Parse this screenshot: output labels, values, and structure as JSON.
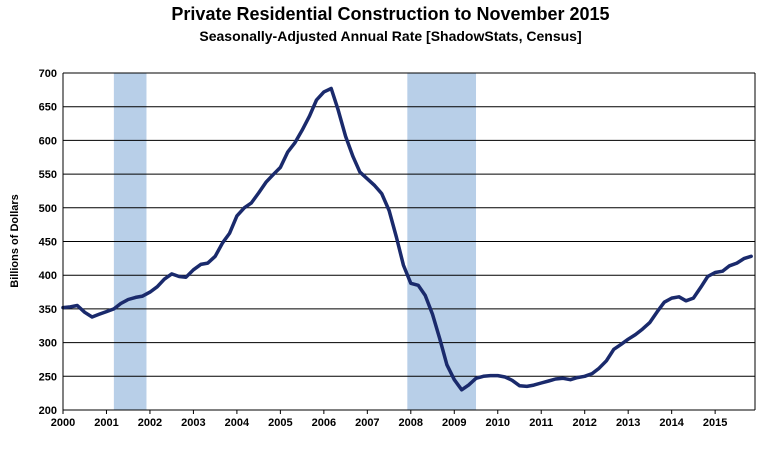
{
  "chart_data": {
    "type": "line",
    "title": "Private Residential Construction to November 2015",
    "subtitle": "Seasonally-Adjusted Annual Rate [ShadowStats, Census]",
    "xlabel": "",
    "ylabel": "Billions  of Dollars",
    "xlim": [
      2000,
      2015.917
    ],
    "ylim": [
      200,
      700
    ],
    "grid": true,
    "y_ticks": [
      "200",
      "250",
      "300",
      "350",
      "400",
      "450",
      "500",
      "550",
      "600",
      "650",
      "700"
    ],
    "x_ticks": [
      "2000",
      "2001",
      "2002",
      "2003",
      "2004",
      "2005",
      "2006",
      "2007",
      "2008",
      "2009",
      "2010",
      "2011",
      "2012",
      "2013",
      "2014",
      "2015"
    ],
    "line_color": "#1a2a6c",
    "recession_color": "#b8cfe8",
    "recessions": [
      [
        2001.17,
        2001.92
      ],
      [
        2007.92,
        2009.5
      ]
    ],
    "series": [
      {
        "x": [
          2000.0,
          2000.17,
          2000.33,
          2000.5,
          2000.67,
          2000.83,
          2001.0,
          2001.17,
          2001.33,
          2001.5,
          2001.67,
          2001.83,
          2002.0,
          2002.17,
          2002.33,
          2002.5,
          2002.67,
          2002.83,
          2003.0,
          2003.17,
          2003.33,
          2003.5,
          2003.67,
          2003.83,
          2004.0,
          2004.17,
          2004.33,
          2004.5,
          2004.67,
          2004.83,
          2005.0,
          2005.17,
          2005.33,
          2005.5,
          2005.67,
          2005.83,
          2006.0,
          2006.17,
          2006.33,
          2006.5,
          2006.67,
          2006.83,
          2007.0,
          2007.17,
          2007.33,
          2007.5,
          2007.67,
          2007.83,
          2008.0,
          2008.17,
          2008.33,
          2008.5,
          2008.67,
          2008.83,
          2009.0,
          2009.17,
          2009.33,
          2009.5,
          2009.67,
          2009.83,
          2010.0,
          2010.17,
          2010.33,
          2010.5,
          2010.67,
          2010.83,
          2011.0,
          2011.17,
          2011.33,
          2011.5,
          2011.67,
          2011.83,
          2012.0,
          2012.17,
          2012.33,
          2012.5,
          2012.67,
          2012.83,
          2013.0,
          2013.17,
          2013.33,
          2013.5,
          2013.67,
          2013.83,
          2014.0,
          2014.17,
          2014.33,
          2014.5,
          2014.67,
          2014.83,
          2015.0,
          2015.17,
          2015.33,
          2015.5,
          2015.67,
          2015.83
        ],
        "values": [
          352,
          353,
          355,
          345,
          338,
          342,
          346,
          350,
          358,
          364,
          367,
          369,
          375,
          383,
          394,
          402,
          398,
          397,
          408,
          416,
          418,
          428,
          448,
          462,
          488,
          500,
          507,
          522,
          538,
          549,
          560,
          583,
          596,
          615,
          636,
          660,
          672,
          677,
          645,
          606,
          576,
          553,
          543,
          533,
          521,
          496,
          456,
          415,
          388,
          385,
          370,
          342,
          305,
          267,
          245,
          230,
          237,
          247,
          250,
          251,
          251,
          249,
          244,
          236,
          235,
          237,
          240,
          243,
          246,
          247,
          245,
          248,
          250,
          254,
          262,
          273,
          290,
          297,
          305,
          312,
          320,
          330,
          346,
          360,
          366,
          368,
          362,
          366,
          382,
          398,
          404,
          406,
          414,
          418,
          425,
          428
        ]
      }
    ]
  }
}
